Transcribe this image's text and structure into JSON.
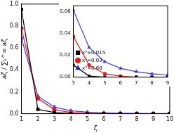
{
  "chart_data": [
    {
      "type": "line",
      "x_label": "ζ",
      "y_label": "aζ / ∑₁^∞ aζ",
      "x": [
        1,
        2,
        3,
        4,
        5,
        6,
        7,
        8,
        9,
        10
      ],
      "series": [
        {
          "name": "xⱽ=0.015",
          "color": "#000000",
          "marker": "square",
          "values": [
            0.95,
            0.04,
            0.011,
            0.001,
            0,
            0,
            0,
            0,
            0,
            0
          ]
        },
        {
          "name": "xⱽ=0.03",
          "color": "#e41a1c",
          "marker": "circle",
          "values": [
            0.78,
            0.14,
            0.037,
            0.011,
            0.003,
            0.001,
            0,
            0,
            0,
            0
          ]
        },
        {
          "name": "xⱽ=0.60",
          "color": "#3b3bf5",
          "marker": "triangle",
          "values": [
            0.69,
            0.16,
            0.061,
            0.027,
            0.014,
            0.008,
            0.005,
            0.003,
            0.002,
            0.001
          ]
        }
      ],
      "xlim": [
        1,
        10
      ],
      "xticks": [
        1,
        2,
        3,
        4,
        5,
        6,
        7,
        8,
        9,
        10
      ],
      "ylim": [
        0,
        1
      ],
      "yticks": [
        {
          "value": 0,
          "label": "0.0"
        },
        0.2,
        0.4,
        0.6,
        0.8,
        {
          "value": 1,
          "label": "1.0"
        }
      ]
    },
    {
      "type": "line",
      "x": [
        3,
        4,
        5,
        6,
        7,
        8,
        9
      ],
      "series": [
        {
          "name": "xⱽ=0.015",
          "color": "#000000",
          "marker": "square",
          "values": [
            0.011,
            0.001,
            0,
            0,
            0,
            0,
            0
          ]
        },
        {
          "name": "xⱽ=0.03",
          "color": "#e41a1c",
          "marker": "circle",
          "values": [
            0.037,
            0.011,
            0.003,
            0.001,
            0,
            0,
            0
          ]
        },
        {
          "name": "xⱽ=0.60",
          "color": "#3b3bf5",
          "marker": "triangle",
          "values": [
            0.061,
            0.027,
            0.014,
            0.008,
            0.005,
            0.003,
            0.002
          ]
        }
      ],
      "xlim": [
        3,
        9
      ],
      "xticks": [
        3,
        4,
        5,
        6,
        7,
        8,
        9
      ],
      "ylim": [
        0,
        0.065
      ],
      "yticks": [
        {
          "value": 0,
          "label": "0.00"
        },
        0.02,
        0.04,
        0.06
      ],
      "legend": "upper right"
    }
  ]
}
